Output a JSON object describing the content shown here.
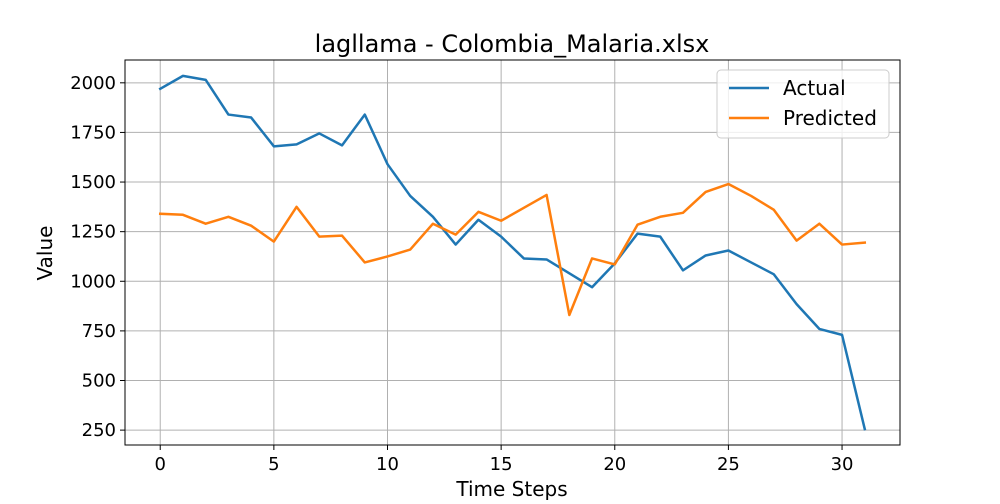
{
  "chart_data": {
    "type": "line",
    "title": "lagllama - Colombia_Malaria.xlsx",
    "xlabel": "Time Steps",
    "ylabel": "Value",
    "xlim": [
      -1.55,
      32.55
    ],
    "ylim": [
      175,
      2115
    ],
    "xticks": [
      0,
      5,
      10,
      15,
      20,
      25,
      30
    ],
    "yticks": [
      250,
      500,
      750,
      1000,
      1250,
      1500,
      1750,
      2000
    ],
    "grid": true,
    "legend_position": "top-right",
    "x": [
      0,
      1,
      2,
      3,
      4,
      5,
      6,
      7,
      8,
      9,
      10,
      11,
      12,
      13,
      14,
      15,
      16,
      17,
      18,
      19,
      20,
      21,
      22,
      23,
      24,
      25,
      26,
      27,
      28,
      29,
      30,
      31
    ],
    "series": [
      {
        "name": "Actual",
        "color": "#1f77b4",
        "values": [
          1970,
          2035,
          2015,
          1840,
          1825,
          1680,
          1690,
          1745,
          1685,
          1840,
          1590,
          1430,
          1325,
          1185,
          1310,
          1225,
          1115,
          1110,
          1040,
          970,
          1090,
          1240,
          1225,
          1055,
          1130,
          1155,
          1095,
          1035,
          885,
          760,
          730,
          255
        ]
      },
      {
        "name": "Predicted",
        "color": "#ff7f0e",
        "values": [
          1340,
          1335,
          1290,
          1325,
          1280,
          1200,
          1375,
          1225,
          1230,
          1095,
          1125,
          1160,
          1290,
          1235,
          1350,
          1305,
          1370,
          1435,
          830,
          1115,
          1085,
          1285,
          1325,
          1345,
          1450,
          1490,
          1430,
          1360,
          1205,
          1290,
          1185,
          1195
        ]
      }
    ]
  }
}
